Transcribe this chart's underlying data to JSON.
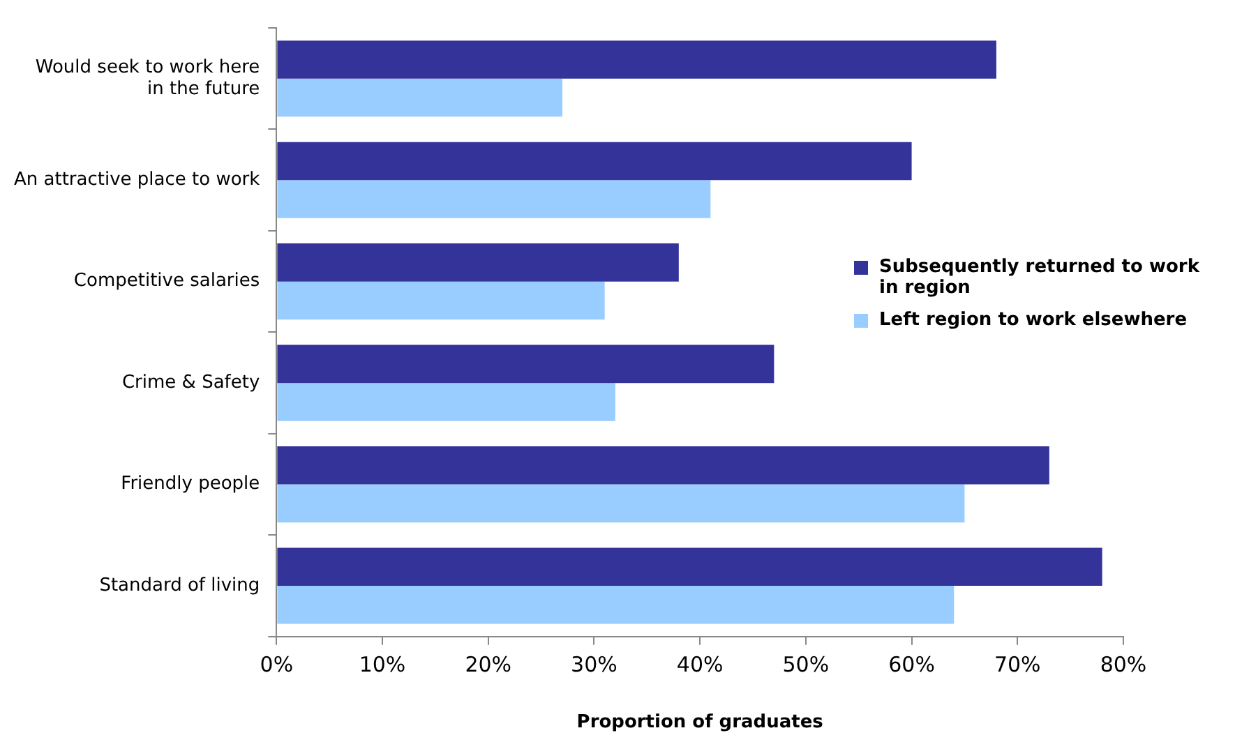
{
  "chart_data": {
    "type": "bar",
    "orientation": "horizontal",
    "xlabel": "Proportion of graduates",
    "categories": [
      "Would seek to work here\nin the future",
      "An attractive place to work",
      "Competitive salaries",
      "Crime & Safety",
      "Friendly people",
      "Standard of living"
    ],
    "series": [
      {
        "name": "Subsequently returned to work in region",
        "color": "#333399",
        "values": [
          68,
          60,
          38,
          47,
          73,
          78
        ]
      },
      {
        "name": "Left region to work elsewhere",
        "color": "#99ccff",
        "values": [
          27,
          41,
          31,
          32,
          65,
          64
        ]
      }
    ],
    "xlim": [
      0,
      80
    ],
    "xticks": [
      {
        "value": 0,
        "label": "0%"
      },
      {
        "value": 10,
        "label": "10%"
      },
      {
        "value": 20,
        "label": "20%"
      },
      {
        "value": 30,
        "label": "30%"
      },
      {
        "value": 40,
        "label": "40%"
      },
      {
        "value": 50,
        "label": "50%"
      },
      {
        "value": 60,
        "label": "60%"
      },
      {
        "value": 70,
        "label": "70%"
      },
      {
        "value": 80,
        "label": "80%"
      }
    ],
    "grid": false,
    "legend": "right"
  }
}
